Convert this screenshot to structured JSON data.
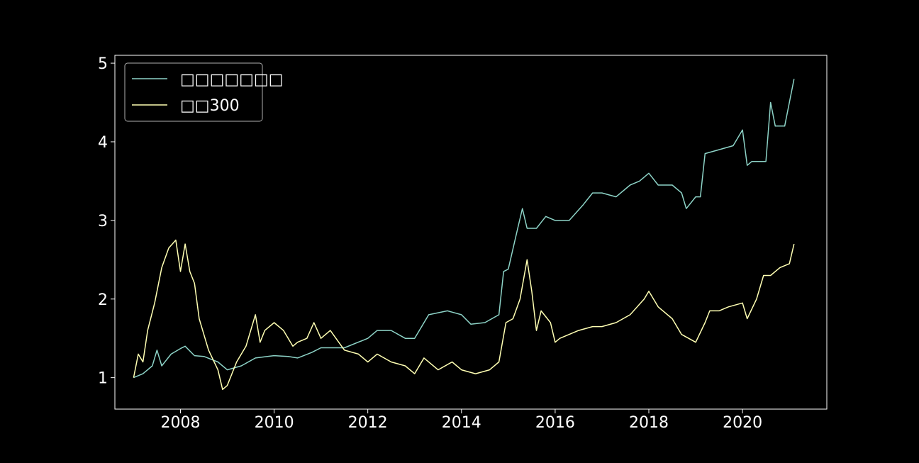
{
  "chart_data": {
    "type": "line",
    "title": "",
    "xlabel": "",
    "ylabel": "",
    "xlim": [
      2006.6,
      2021.8
    ],
    "ylim": [
      0.6,
      5.1
    ],
    "grid": false,
    "legend_position": "top-left",
    "x_ticks": [
      2008,
      2010,
      2012,
      2014,
      2016,
      2018,
      2020
    ],
    "x_tick_labels": [
      "2008",
      "2010",
      "2012",
      "2014",
      "2016",
      "2018",
      "2020"
    ],
    "y_ticks": [
      1,
      2,
      3,
      4,
      5
    ],
    "y_tick_labels": [
      "1",
      "2",
      "3",
      "4",
      "5"
    ],
    "series": [
      {
        "name": "□□□□□□□",
        "color": "#8dd3c7",
        "x": [
          2007.0,
          2007.2,
          2007.4,
          2007.5,
          2007.6,
          2007.8,
          2008.0,
          2008.1,
          2008.3,
          2008.5,
          2008.8,
          2009.0,
          2009.3,
          2009.6,
          2010.0,
          2010.3,
          2010.5,
          2010.8,
          2011.0,
          2011.5,
          2012.0,
          2012.2,
          2012.5,
          2012.8,
          2013.0,
          2013.3,
          2013.7,
          2014.0,
          2014.2,
          2014.5,
          2014.8,
          2014.9,
          2015.0,
          2015.2,
          2015.3,
          2015.4,
          2015.5,
          2015.6,
          2015.8,
          2016.0,
          2016.3,
          2016.6,
          2016.8,
          2017.0,
          2017.3,
          2017.6,
          2017.8,
          2018.0,
          2018.2,
          2018.5,
          2018.7,
          2018.8,
          2019.0,
          2019.1,
          2019.2,
          2019.5,
          2019.8,
          2020.0,
          2020.1,
          2020.2,
          2020.5,
          2020.6,
          2020.7,
          2020.9,
          2021.0,
          2021.1
        ],
        "y": [
          1.0,
          1.05,
          1.15,
          1.35,
          1.15,
          1.3,
          1.37,
          1.4,
          1.28,
          1.27,
          1.2,
          1.1,
          1.15,
          1.25,
          1.28,
          1.27,
          1.25,
          1.32,
          1.38,
          1.38,
          1.5,
          1.6,
          1.6,
          1.5,
          1.5,
          1.8,
          1.85,
          1.8,
          1.68,
          1.7,
          1.8,
          2.35,
          2.38,
          2.9,
          3.15,
          2.9,
          2.9,
          2.9,
          3.05,
          3.0,
          3.0,
          3.2,
          3.35,
          3.35,
          3.3,
          3.45,
          3.5,
          3.6,
          3.45,
          3.45,
          3.35,
          3.15,
          3.3,
          3.3,
          3.85,
          3.9,
          3.95,
          4.15,
          3.7,
          3.75,
          3.75,
          4.5,
          4.2,
          4.2,
          4.5,
          4.8
        ]
      },
      {
        "name": "□□300",
        "color": "#ffffb3",
        "x": [
          2007.0,
          2007.1,
          2007.2,
          2007.3,
          2007.45,
          2007.6,
          2007.75,
          2007.9,
          2008.0,
          2008.1,
          2008.2,
          2008.3,
          2008.4,
          2008.5,
          2008.6,
          2008.8,
          2008.9,
          2009.0,
          2009.2,
          2009.4,
          2009.6,
          2009.7,
          2009.8,
          2010.0,
          2010.2,
          2010.4,
          2010.5,
          2010.7,
          2010.85,
          2011.0,
          2011.2,
          2011.5,
          2011.8,
          2012.0,
          2012.2,
          2012.5,
          2012.8,
          2013.0,
          2013.2,
          2013.5,
          2013.8,
          2014.0,
          2014.3,
          2014.6,
          2014.8,
          2014.95,
          2015.1,
          2015.25,
          2015.4,
          2015.5,
          2015.6,
          2015.7,
          2015.9,
          2016.0,
          2016.1,
          2016.5,
          2016.8,
          2017.0,
          2017.3,
          2017.6,
          2017.9,
          2018.0,
          2018.2,
          2018.5,
          2018.7,
          2019.0,
          2019.2,
          2019.3,
          2019.5,
          2019.7,
          2020.0,
          2020.1,
          2020.3,
          2020.45,
          2020.6,
          2020.8,
          2021.0,
          2021.1
        ],
        "y": [
          1.0,
          1.3,
          1.2,
          1.6,
          1.95,
          2.4,
          2.65,
          2.75,
          2.35,
          2.7,
          2.35,
          2.2,
          1.75,
          1.55,
          1.35,
          1.1,
          0.85,
          0.9,
          1.2,
          1.4,
          1.8,
          1.45,
          1.6,
          1.7,
          1.6,
          1.4,
          1.45,
          1.5,
          1.7,
          1.5,
          1.6,
          1.35,
          1.3,
          1.2,
          1.3,
          1.2,
          1.15,
          1.05,
          1.25,
          1.1,
          1.2,
          1.1,
          1.05,
          1.1,
          1.2,
          1.7,
          1.75,
          2.0,
          2.5,
          2.1,
          1.6,
          1.85,
          1.7,
          1.45,
          1.5,
          1.6,
          1.65,
          1.65,
          1.7,
          1.8,
          2.0,
          2.1,
          1.9,
          1.75,
          1.55,
          1.45,
          1.7,
          1.85,
          1.85,
          1.9,
          1.95,
          1.75,
          2.0,
          2.3,
          2.3,
          2.4,
          2.45,
          2.7
        ]
      }
    ]
  }
}
